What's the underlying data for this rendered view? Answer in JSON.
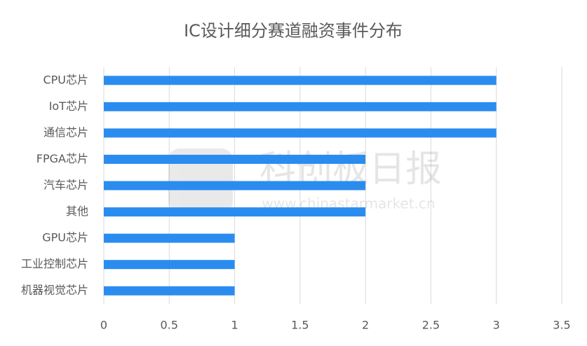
{
  "chart_data": {
    "type": "bar",
    "orientation": "horizontal",
    "title": "IC设计细分赛道融资事件分布",
    "categories": [
      "CPU芯片",
      "IoT芯片",
      "通信芯片",
      "FPGA芯片",
      "汽车芯片",
      "其他",
      "GPU芯片",
      "工业控制芯片",
      "机器视觉芯片"
    ],
    "values": [
      3,
      3,
      3,
      2,
      2,
      2,
      1,
      1,
      1
    ],
    "color": "#2b8cf0",
    "xlim": [
      0,
      3.5
    ],
    "xticks": [
      0,
      0.5,
      1,
      1.5,
      2,
      2.5,
      3,
      3.5
    ],
    "grid": true,
    "watermark": "科创板日报",
    "watermark_url": "www.chinastarmarket.cn"
  }
}
